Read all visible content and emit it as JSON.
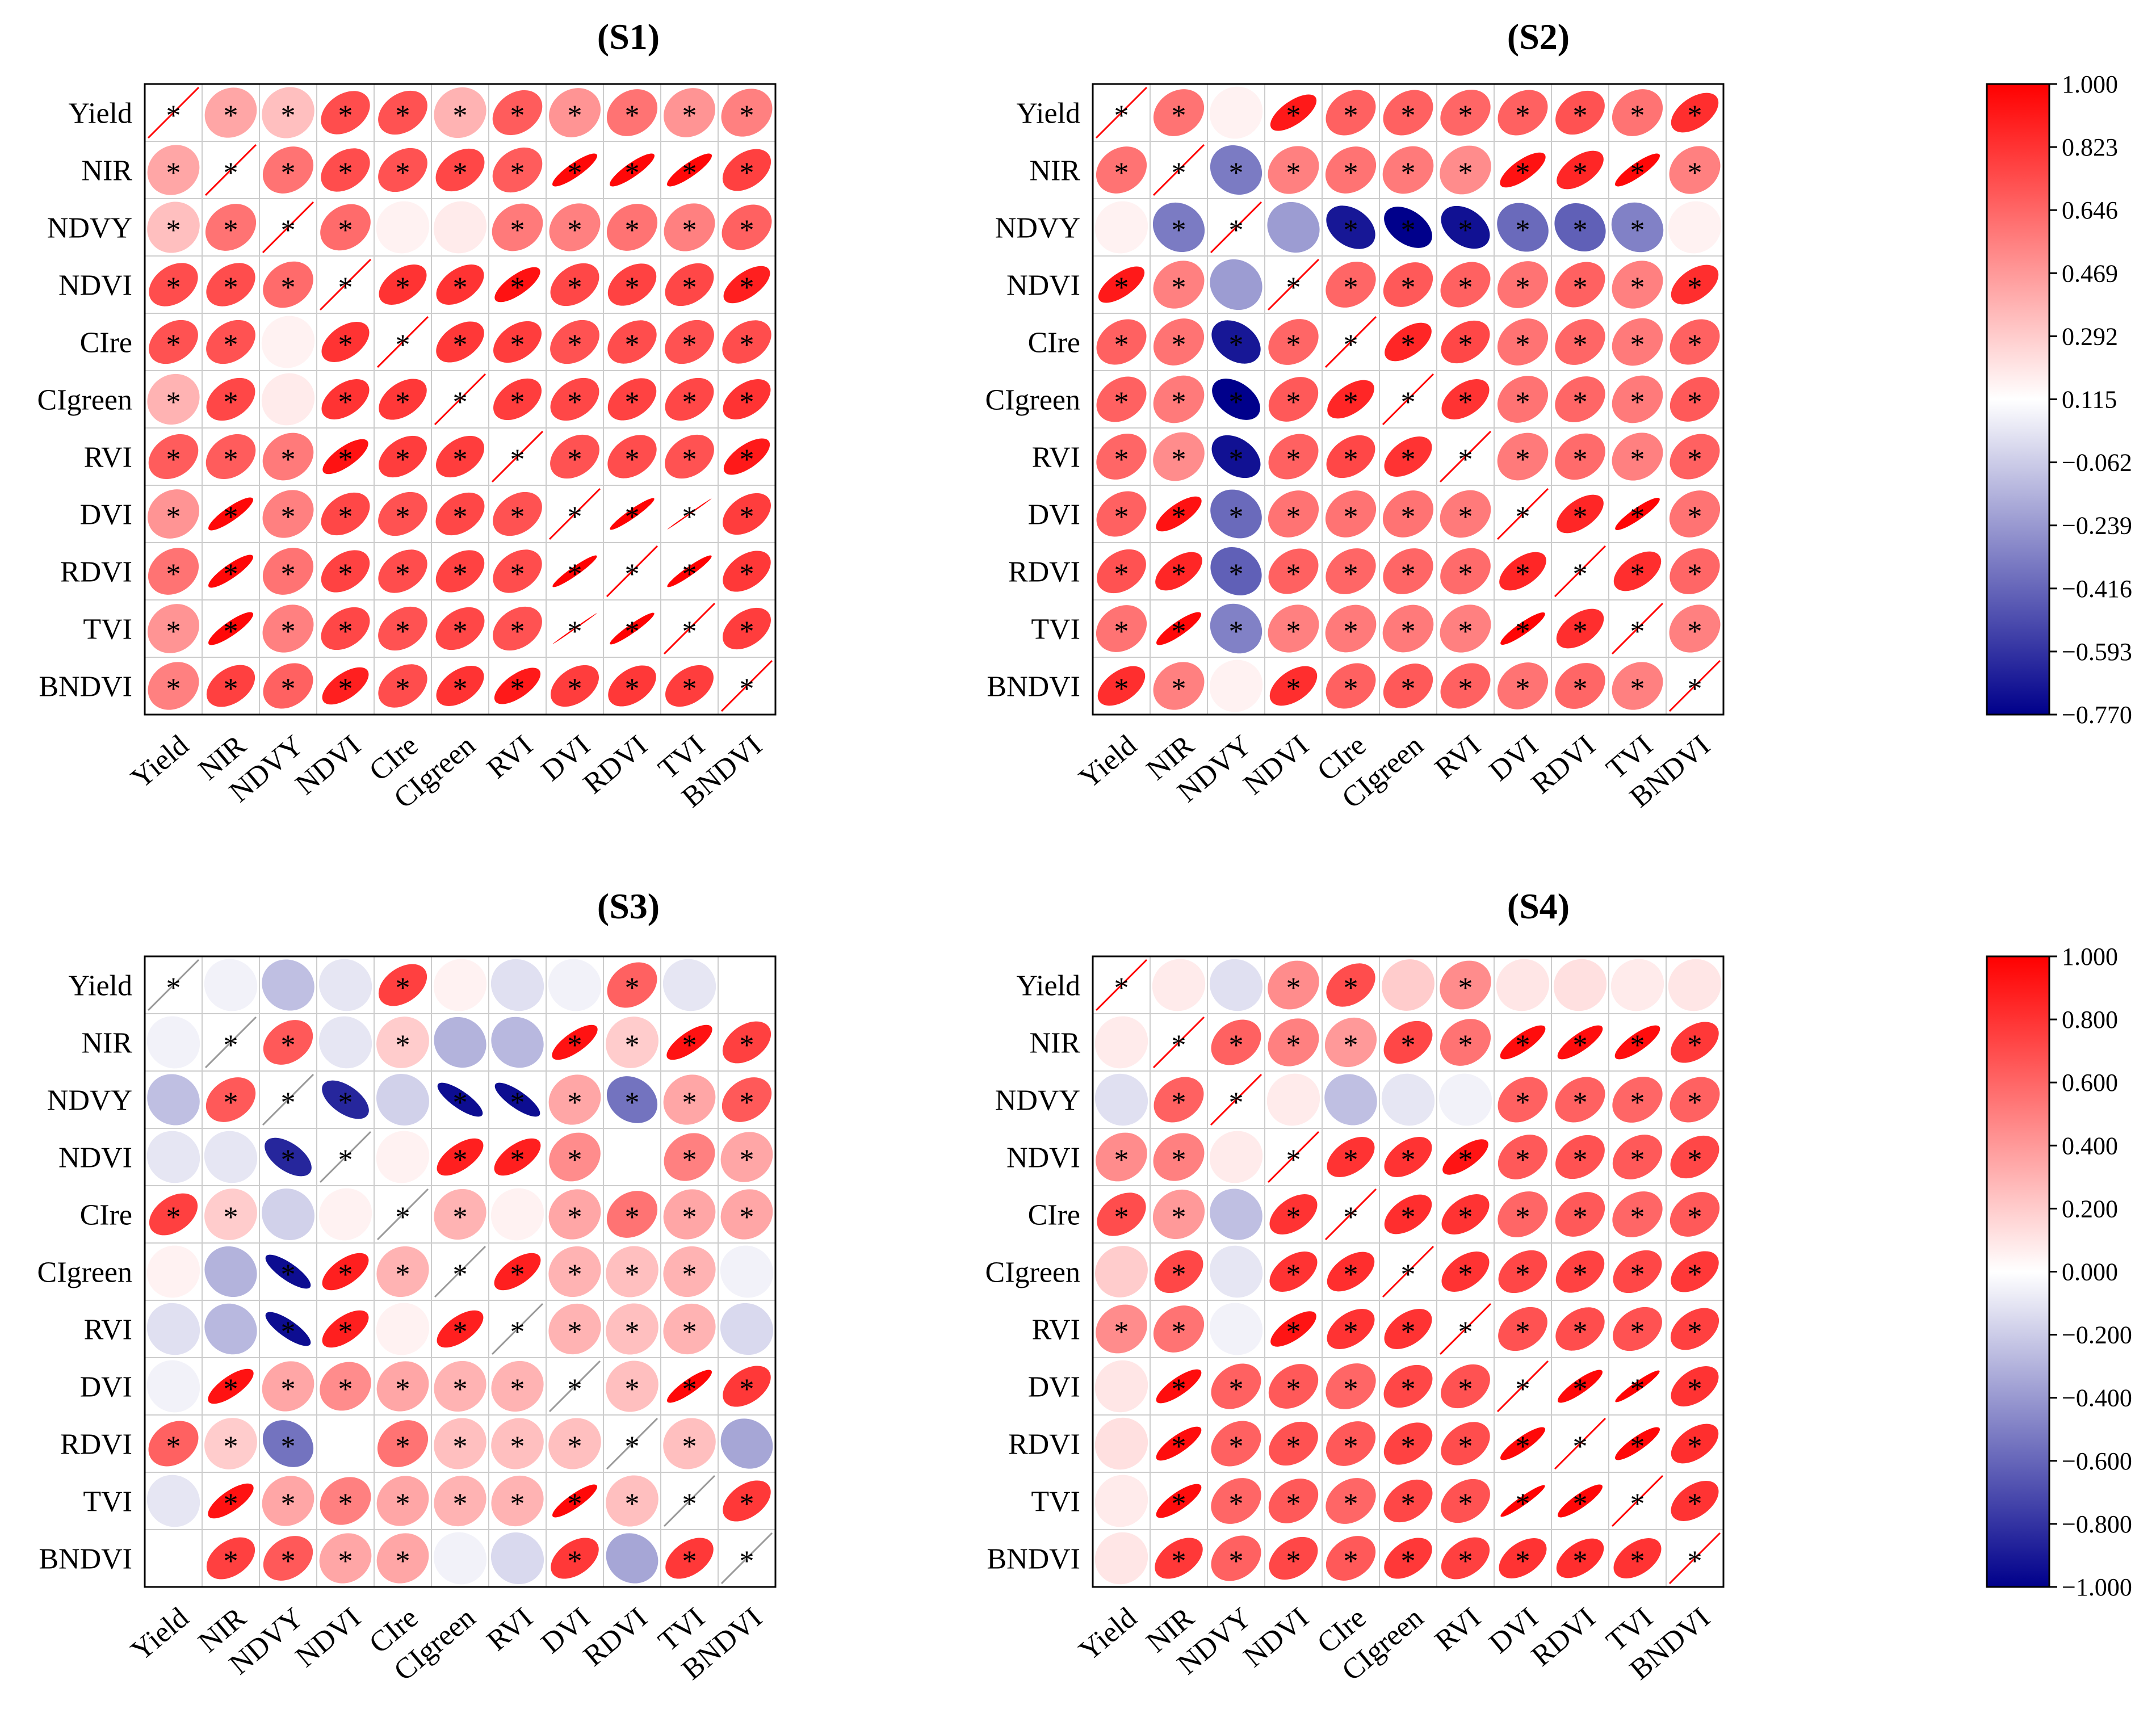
{
  "figure": {
    "panel_titles": [
      "(S1)",
      "(S2)",
      "(S3)",
      "(S4)"
    ],
    "variables": [
      "Yield",
      "NIR",
      "NDVY",
      "NDVI",
      "CIre",
      "CIgreen",
      "RVI",
      "DVI",
      "RDVI",
      "TVI",
      "BNDVI"
    ],
    "colorbars": {
      "top": [
        "1.000",
        "0.823",
        "0.646",
        "0.469",
        "0.292",
        "0.115",
        "−0.062",
        "−0.239",
        "−0.416",
        "−0.593",
        "−0.770"
      ],
      "bottom": [
        "1.000",
        "0.800",
        "0.600",
        "0.400",
        "0.200",
        "0.000",
        "−0.200",
        "−0.400",
        "−0.600",
        "−0.800",
        "−1.000"
      ]
    },
    "significance_marker": "*",
    "colors": {
      "positive": "#ff0000",
      "neutral": "#ffffff",
      "negative": "#00008b",
      "grid": "#cccccc",
      "frame": "#000000"
    }
  },
  "chart_data": [
    {
      "type": "heatmap",
      "title": "(S1)",
      "variables": [
        "Yield",
        "NIR",
        "NDVY",
        "NDVI",
        "CIre",
        "CIgreen",
        "RVI",
        "DVI",
        "RDVI",
        "TVI",
        "BNDVI"
      ],
      "color_range": [
        -0.77,
        1.0
      ],
      "diagonal_line_color": "#ff0000",
      "values": [
        [
          1.0,
          0.35,
          0.25,
          0.7,
          0.68,
          0.3,
          0.64,
          0.42,
          0.55,
          0.42,
          0.5
        ],
        [
          0.35,
          1.0,
          0.55,
          0.7,
          0.68,
          0.72,
          0.64,
          0.97,
          0.97,
          0.97,
          0.75
        ],
        [
          0.25,
          0.55,
          1.0,
          0.58,
          0.05,
          0.08,
          0.52,
          0.5,
          0.55,
          0.5,
          0.62
        ],
        [
          0.7,
          0.7,
          0.58,
          1.0,
          0.8,
          0.8,
          0.93,
          0.72,
          0.74,
          0.72,
          0.88
        ],
        [
          0.68,
          0.68,
          0.05,
          0.8,
          1.0,
          0.78,
          0.76,
          0.68,
          0.7,
          0.68,
          0.7
        ],
        [
          0.3,
          0.72,
          0.08,
          0.8,
          0.78,
          1.0,
          0.76,
          0.72,
          0.74,
          0.72,
          0.8
        ],
        [
          0.64,
          0.64,
          0.52,
          0.93,
          0.76,
          0.76,
          1.0,
          0.68,
          0.7,
          0.68,
          0.9
        ],
        [
          0.42,
          0.97,
          0.5,
          0.72,
          0.68,
          0.72,
          0.68,
          1.0,
          0.99,
          1.0,
          0.76
        ],
        [
          0.55,
          0.97,
          0.55,
          0.74,
          0.7,
          0.74,
          0.7,
          0.99,
          1.0,
          0.99,
          0.78
        ],
        [
          0.42,
          0.97,
          0.5,
          0.72,
          0.68,
          0.72,
          0.68,
          1.0,
          0.99,
          1.0,
          0.76
        ],
        [
          0.5,
          0.75,
          0.62,
          0.88,
          0.7,
          0.8,
          0.9,
          0.76,
          0.78,
          0.76,
          1.0
        ]
      ],
      "significant": [
        [
          1,
          1,
          1,
          1,
          1,
          1,
          1,
          1,
          1,
          1,
          1
        ],
        [
          1,
          1,
          1,
          1,
          1,
          1,
          1,
          1,
          1,
          1,
          1
        ],
        [
          1,
          1,
          1,
          1,
          0,
          0,
          1,
          1,
          1,
          1,
          1
        ],
        [
          1,
          1,
          1,
          1,
          1,
          1,
          1,
          1,
          1,
          1,
          1
        ],
        [
          1,
          1,
          0,
          1,
          1,
          1,
          1,
          1,
          1,
          1,
          1
        ],
        [
          1,
          1,
          0,
          1,
          1,
          1,
          1,
          1,
          1,
          1,
          1
        ],
        [
          1,
          1,
          1,
          1,
          1,
          1,
          1,
          1,
          1,
          1,
          1
        ],
        [
          1,
          1,
          1,
          1,
          1,
          1,
          1,
          1,
          1,
          1,
          1
        ],
        [
          1,
          1,
          1,
          1,
          1,
          1,
          1,
          1,
          1,
          1,
          1
        ],
        [
          1,
          1,
          1,
          1,
          1,
          1,
          1,
          1,
          1,
          1,
          1
        ],
        [
          1,
          1,
          1,
          1,
          1,
          1,
          1,
          1,
          1,
          1,
          1
        ]
      ]
    },
    {
      "type": "heatmap",
      "title": "(S2)",
      "variables": [
        "Yield",
        "NIR",
        "NDVY",
        "NDVI",
        "CIre",
        "CIgreen",
        "RVI",
        "DVI",
        "RDVI",
        "TVI",
        "BNDVI"
      ],
      "color_range": [
        -0.77,
        1.0
      ],
      "diagonal_line_color": "#ff0000",
      "values": [
        [
          1.0,
          0.55,
          0.05,
          0.9,
          0.62,
          0.62,
          0.6,
          0.62,
          0.68,
          0.55,
          0.82
        ],
        [
          0.55,
          1.0,
          -0.4,
          0.5,
          0.55,
          0.52,
          0.45,
          0.93,
          0.85,
          0.97,
          0.5
        ],
        [
          0.05,
          -0.4,
          1.0,
          -0.3,
          -0.7,
          -0.77,
          -0.72,
          -0.45,
          -0.48,
          -0.38,
          0.05
        ],
        [
          0.9,
          0.5,
          -0.3,
          1.0,
          0.6,
          0.65,
          0.62,
          0.55,
          0.62,
          0.5,
          0.82
        ],
        [
          0.62,
          0.55,
          -0.7,
          0.6,
          1.0,
          0.85,
          0.72,
          0.55,
          0.6,
          0.52,
          0.62
        ],
        [
          0.62,
          0.52,
          -0.77,
          0.65,
          0.85,
          1.0,
          0.8,
          0.55,
          0.6,
          0.52,
          0.65
        ],
        [
          0.6,
          0.45,
          -0.72,
          0.62,
          0.72,
          0.8,
          1.0,
          0.52,
          0.58,
          0.5,
          0.62
        ],
        [
          0.62,
          0.93,
          -0.45,
          0.55,
          0.55,
          0.55,
          0.52,
          1.0,
          0.85,
          0.98,
          0.55
        ],
        [
          0.68,
          0.85,
          -0.48,
          0.62,
          0.6,
          0.6,
          0.58,
          0.85,
          1.0,
          0.82,
          0.6
        ],
        [
          0.55,
          0.97,
          -0.38,
          0.5,
          0.52,
          0.52,
          0.5,
          0.98,
          0.82,
          1.0,
          0.5
        ],
        [
          0.82,
          0.5,
          0.05,
          0.82,
          0.62,
          0.65,
          0.62,
          0.55,
          0.6,
          0.5,
          1.0
        ]
      ],
      "significant": [
        [
          1,
          1,
          0,
          1,
          1,
          1,
          1,
          1,
          1,
          1,
          1
        ],
        [
          1,
          1,
          1,
          1,
          1,
          1,
          1,
          1,
          1,
          1,
          1
        ],
        [
          0,
          1,
          1,
          0,
          1,
          1,
          1,
          1,
          1,
          1,
          0
        ],
        [
          1,
          1,
          0,
          1,
          1,
          1,
          1,
          1,
          1,
          1,
          1
        ],
        [
          1,
          1,
          1,
          1,
          1,
          1,
          1,
          1,
          1,
          1,
          1
        ],
        [
          1,
          1,
          1,
          1,
          1,
          1,
          1,
          1,
          1,
          1,
          1
        ],
        [
          1,
          1,
          1,
          1,
          1,
          1,
          1,
          1,
          1,
          1,
          1
        ],
        [
          1,
          1,
          1,
          1,
          1,
          1,
          1,
          1,
          1,
          1,
          1
        ],
        [
          1,
          1,
          1,
          1,
          1,
          1,
          1,
          1,
          1,
          1,
          1
        ],
        [
          1,
          1,
          1,
          1,
          1,
          1,
          1,
          1,
          1,
          1,
          1
        ],
        [
          1,
          1,
          0,
          1,
          1,
          1,
          1,
          1,
          1,
          1,
          1
        ]
      ]
    },
    {
      "type": "heatmap",
      "title": "(S3)",
      "variables": [
        "Yield",
        "NIR",
        "NDVY",
        "NDVI",
        "CIre",
        "CIgreen",
        "RVI",
        "DVI",
        "RDVI",
        "TVI",
        "BNDVI"
      ],
      "color_range": [
        -1.0,
        1.0
      ],
      "diagonal_line_color": "#999999",
      "values": [
        [
          1.0,
          -0.05,
          -0.25,
          -0.1,
          0.75,
          0.05,
          -0.12,
          -0.05,
          0.62,
          -0.1,
          0.0
        ],
        [
          -0.05,
          1.0,
          0.65,
          -0.1,
          0.2,
          -0.3,
          -0.28,
          0.93,
          0.2,
          0.93,
          0.75
        ],
        [
          -0.25,
          0.65,
          1.0,
          -0.85,
          -0.18,
          -0.95,
          -0.95,
          0.35,
          -0.55,
          0.35,
          0.65
        ],
        [
          -0.1,
          -0.1,
          -0.85,
          1.0,
          0.05,
          0.88,
          0.88,
          0.45,
          0.0,
          0.5,
          0.35
        ],
        [
          0.75,
          0.2,
          -0.18,
          0.05,
          1.0,
          0.3,
          0.05,
          0.35,
          0.55,
          0.35,
          0.35
        ],
        [
          0.05,
          -0.3,
          -0.95,
          0.88,
          0.3,
          1.0,
          0.88,
          0.3,
          0.25,
          0.3,
          -0.05
        ],
        [
          -0.12,
          -0.28,
          -0.95,
          0.88,
          0.05,
          0.88,
          1.0,
          0.3,
          0.25,
          0.3,
          -0.15
        ],
        [
          -0.05,
          0.93,
          0.35,
          0.45,
          0.35,
          0.3,
          0.3,
          1.0,
          0.25,
          0.97,
          0.78
        ],
        [
          0.62,
          0.2,
          -0.55,
          0.0,
          0.55,
          0.25,
          0.25,
          0.25,
          1.0,
          0.25,
          -0.35
        ],
        [
          -0.1,
          0.93,
          0.35,
          0.5,
          0.35,
          0.3,
          0.3,
          0.97,
          0.25,
          1.0,
          0.78
        ],
        [
          0.0,
          0.75,
          0.65,
          0.35,
          0.35,
          -0.05,
          -0.15,
          0.78,
          -0.35,
          0.78,
          1.0
        ]
      ],
      "significant": [
        [
          1,
          0,
          0,
          0,
          1,
          0,
          0,
          0,
          1,
          0,
          0
        ],
        [
          0,
          1,
          1,
          0,
          1,
          0,
          0,
          1,
          1,
          1,
          1
        ],
        [
          0,
          1,
          1,
          1,
          0,
          1,
          1,
          1,
          1,
          1,
          1
        ],
        [
          0,
          0,
          1,
          1,
          0,
          1,
          1,
          1,
          0,
          1,
          1
        ],
        [
          1,
          1,
          0,
          0,
          1,
          1,
          0,
          1,
          1,
          1,
          1
        ],
        [
          0,
          0,
          1,
          1,
          1,
          1,
          1,
          1,
          1,
          1,
          0
        ],
        [
          0,
          0,
          1,
          1,
          0,
          1,
          1,
          1,
          1,
          1,
          0
        ],
        [
          0,
          1,
          1,
          1,
          1,
          1,
          1,
          1,
          1,
          1,
          1
        ],
        [
          1,
          1,
          1,
          0,
          1,
          1,
          1,
          1,
          1,
          1,
          0
        ],
        [
          0,
          1,
          1,
          1,
          1,
          1,
          1,
          1,
          1,
          1,
          1
        ],
        [
          0,
          1,
          1,
          1,
          1,
          0,
          0,
          1,
          0,
          1,
          1
        ]
      ]
    },
    {
      "type": "heatmap",
      "title": "(S4)",
      "variables": [
        "Yield",
        "NIR",
        "NDVY",
        "NDVI",
        "CIre",
        "CIgreen",
        "RVI",
        "DVI",
        "RDVI",
        "TVI",
        "BNDVI"
      ],
      "color_range": [
        -1.0,
        1.0
      ],
      "diagonal_line_color": "#ff0000",
      "values": [
        [
          1.0,
          0.08,
          -0.12,
          0.45,
          0.7,
          0.2,
          0.45,
          0.1,
          0.12,
          0.08,
          0.1
        ],
        [
          0.08,
          1.0,
          0.62,
          0.5,
          0.4,
          0.72,
          0.55,
          0.95,
          0.95,
          0.95,
          0.78
        ],
        [
          -0.12,
          0.62,
          1.0,
          0.08,
          -0.25,
          -0.1,
          -0.05,
          0.62,
          0.62,
          0.6,
          0.62
        ],
        [
          0.45,
          0.5,
          0.08,
          1.0,
          0.8,
          0.8,
          0.92,
          0.65,
          0.68,
          0.65,
          0.72
        ],
        [
          0.7,
          0.4,
          -0.25,
          0.8,
          1.0,
          0.82,
          0.8,
          0.6,
          0.65,
          0.6,
          0.65
        ],
        [
          0.2,
          0.72,
          -0.1,
          0.8,
          0.82,
          1.0,
          0.8,
          0.72,
          0.74,
          0.72,
          0.78
        ],
        [
          0.45,
          0.55,
          -0.05,
          0.92,
          0.8,
          0.8,
          1.0,
          0.68,
          0.7,
          0.68,
          0.75
        ],
        [
          0.1,
          0.95,
          0.62,
          0.65,
          0.6,
          0.72,
          0.68,
          1.0,
          0.97,
          0.99,
          0.8
        ],
        [
          0.12,
          0.95,
          0.62,
          0.68,
          0.65,
          0.74,
          0.7,
          0.97,
          1.0,
          0.97,
          0.82
        ],
        [
          0.08,
          0.95,
          0.6,
          0.65,
          0.6,
          0.72,
          0.68,
          0.99,
          0.97,
          1.0,
          0.8
        ],
        [
          0.1,
          0.78,
          0.62,
          0.72,
          0.65,
          0.78,
          0.75,
          0.8,
          0.82,
          0.8,
          1.0
        ]
      ],
      "significant": [
        [
          1,
          0,
          0,
          1,
          1,
          0,
          1,
          0,
          0,
          0,
          0
        ],
        [
          0,
          1,
          1,
          1,
          1,
          1,
          1,
          1,
          1,
          1,
          1
        ],
        [
          0,
          1,
          1,
          0,
          0,
          0,
          0,
          1,
          1,
          1,
          1
        ],
        [
          1,
          1,
          0,
          1,
          1,
          1,
          1,
          1,
          1,
          1,
          1
        ],
        [
          1,
          1,
          0,
          1,
          1,
          1,
          1,
          1,
          1,
          1,
          1
        ],
        [
          0,
          1,
          0,
          1,
          1,
          1,
          1,
          1,
          1,
          1,
          1
        ],
        [
          1,
          1,
          0,
          1,
          1,
          1,
          1,
          1,
          1,
          1,
          1
        ],
        [
          0,
          1,
          1,
          1,
          1,
          1,
          1,
          1,
          1,
          1,
          1
        ],
        [
          0,
          1,
          1,
          1,
          1,
          1,
          1,
          1,
          1,
          1,
          1
        ],
        [
          0,
          1,
          1,
          1,
          1,
          1,
          1,
          1,
          1,
          1,
          1
        ],
        [
          0,
          1,
          1,
          1,
          1,
          1,
          1,
          1,
          1,
          1,
          1
        ]
      ]
    }
  ]
}
